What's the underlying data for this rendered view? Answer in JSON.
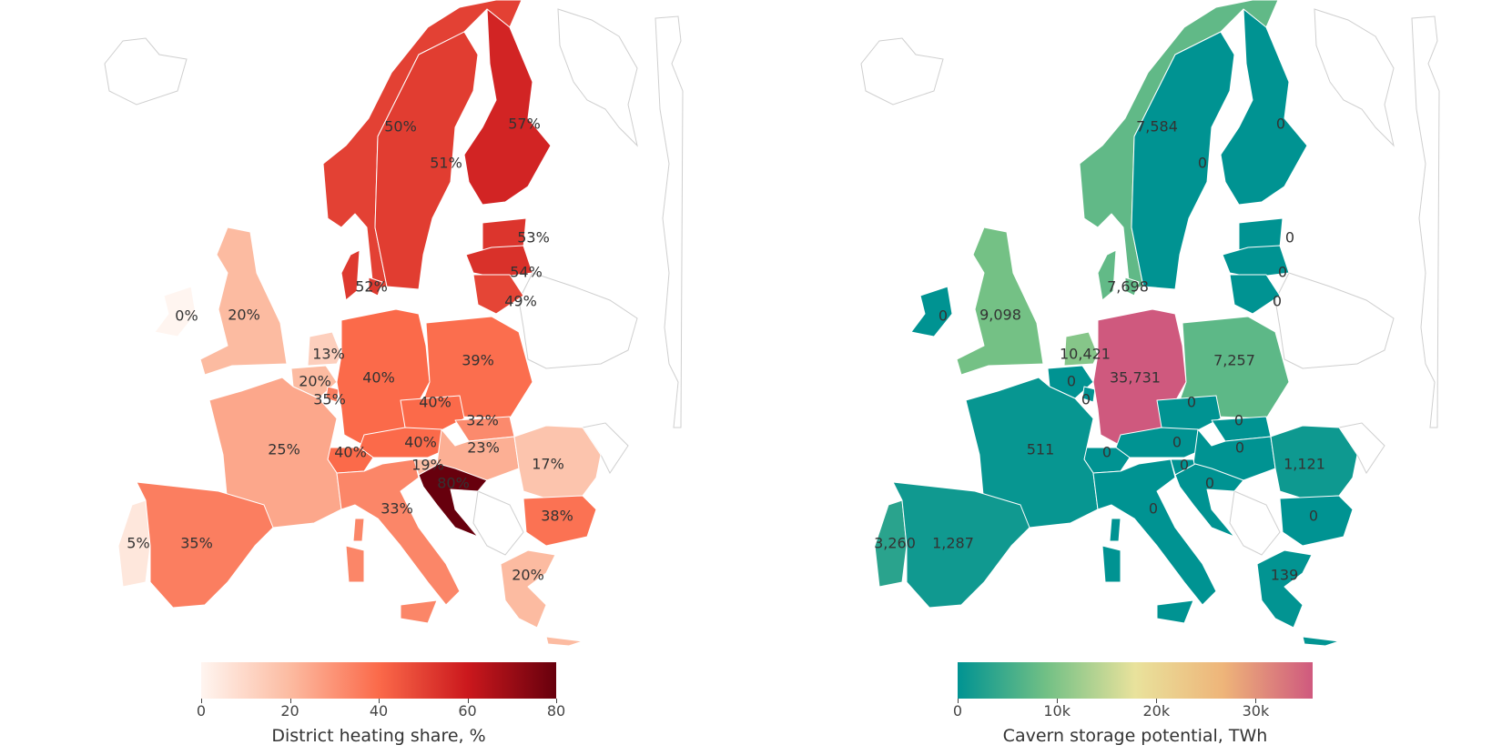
{
  "maps": [
    {
      "id": "left",
      "colorbar": {
        "title": "District heating share, %",
        "ticks": [
          "0",
          "20",
          "40",
          "60",
          "80"
        ],
        "tick_values": [
          0,
          20,
          40,
          60,
          80
        ],
        "range": [
          0,
          80
        ],
        "colors": [
          "#fff5f0",
          "#fcbba1",
          "#fb6a4a",
          "#cb181d",
          "#67000d"
        ]
      },
      "regions": [
        {
          "country": "Norway",
          "value": 50,
          "label": "50%"
        },
        {
          "country": "Sweden",
          "value": 51,
          "label": "51%"
        },
        {
          "country": "Finland",
          "value": 57,
          "label": "57%"
        },
        {
          "country": "Estonia",
          "value": 53,
          "label": "53%"
        },
        {
          "country": "Latvia",
          "value": 54,
          "label": "54%"
        },
        {
          "country": "Lithuania",
          "value": 49,
          "label": "49%"
        },
        {
          "country": "Denmark",
          "value": 52,
          "label": "52%"
        },
        {
          "country": "Ireland",
          "value": 0,
          "label": "0%"
        },
        {
          "country": "United Kingdom",
          "value": 20,
          "label": "20%"
        },
        {
          "country": "Netherlands",
          "value": 13,
          "label": "13%"
        },
        {
          "country": "Belgium",
          "value": 20,
          "label": "20%"
        },
        {
          "country": "Luxembourg",
          "value": 35,
          "label": "35%"
        },
        {
          "country": "Germany",
          "value": 40,
          "label": "40%"
        },
        {
          "country": "Poland",
          "value": 39,
          "label": "39%"
        },
        {
          "country": "Czechia",
          "value": 40,
          "label": "40%"
        },
        {
          "country": "Slovakia",
          "value": 32,
          "label": "32%"
        },
        {
          "country": "Austria",
          "value": 40,
          "label": "40%"
        },
        {
          "country": "Hungary",
          "value": 23,
          "label": "23%"
        },
        {
          "country": "Switzerland",
          "value": 40,
          "label": "40%"
        },
        {
          "country": "France",
          "value": 25,
          "label": "25%"
        },
        {
          "country": "Slovenia",
          "value": 19,
          "label": "19%"
        },
        {
          "country": "Croatia",
          "value": 80,
          "label": "80%"
        },
        {
          "country": "Romania",
          "value": 17,
          "label": "17%"
        },
        {
          "country": "Bulgaria",
          "value": 38,
          "label": "38%"
        },
        {
          "country": "Italy",
          "value": 33,
          "label": "33%"
        },
        {
          "country": "Greece",
          "value": 20,
          "label": "20%"
        },
        {
          "country": "Portugal",
          "value": 5,
          "label": "5%"
        },
        {
          "country": "Spain",
          "value": 35,
          "label": "35%"
        }
      ]
    },
    {
      "id": "right",
      "colorbar": {
        "title": "Cavern storage potential, TWh",
        "ticks": [
          "0",
          "10k",
          "20k",
          "30k"
        ],
        "tick_values": [
          0,
          10000,
          20000,
          30000
        ],
        "range": [
          0,
          35731
        ],
        "colors": [
          "#009392",
          "#72c085",
          "#e9e29c",
          "#eeb479",
          "#cf597e"
        ]
      },
      "regions": [
        {
          "country": "Norway",
          "value": 7584,
          "label": "7,584"
        },
        {
          "country": "Sweden",
          "value": 0,
          "label": "0"
        },
        {
          "country": "Finland",
          "value": 0,
          "label": "0"
        },
        {
          "country": "Estonia",
          "value": 0,
          "label": "0"
        },
        {
          "country": "Latvia",
          "value": 0,
          "label": "0"
        },
        {
          "country": "Lithuania",
          "value": 0,
          "label": "0"
        },
        {
          "country": "Denmark",
          "value": 7698,
          "label": "7,698"
        },
        {
          "country": "Ireland",
          "value": 0,
          "label": "0"
        },
        {
          "country": "United Kingdom",
          "value": 9098,
          "label": "9,098"
        },
        {
          "country": "Netherlands",
          "value": 10421,
          "label": "10,421"
        },
        {
          "country": "Belgium",
          "value": 0,
          "label": "0"
        },
        {
          "country": "Luxembourg",
          "value": 0,
          "label": "0"
        },
        {
          "country": "Germany",
          "value": 35731,
          "label": "35,731"
        },
        {
          "country": "Poland",
          "value": 7257,
          "label": "7,257"
        },
        {
          "country": "Czechia",
          "value": 0,
          "label": "0"
        },
        {
          "country": "Slovakia",
          "value": 0,
          "label": "0"
        },
        {
          "country": "Austria",
          "value": 0,
          "label": "0"
        },
        {
          "country": "Hungary",
          "value": 0,
          "label": "0"
        },
        {
          "country": "Switzerland",
          "value": 0,
          "label": "0"
        },
        {
          "country": "France",
          "value": 511,
          "label": "511"
        },
        {
          "country": "Slovenia",
          "value": 0,
          "label": "0"
        },
        {
          "country": "Croatia",
          "value": 0,
          "label": "0"
        },
        {
          "country": "Romania",
          "value": 1121,
          "label": "1,121"
        },
        {
          "country": "Bulgaria",
          "value": 0,
          "label": "0"
        },
        {
          "country": "Italy",
          "value": 0,
          "label": "0"
        },
        {
          "country": "Greece",
          "value": 139,
          "label": "139"
        },
        {
          "country": "Portugal",
          "value": 3260,
          "label": "3,260"
        },
        {
          "country": "Spain",
          "value": 1287,
          "label": "1,287"
        }
      ]
    }
  ]
}
